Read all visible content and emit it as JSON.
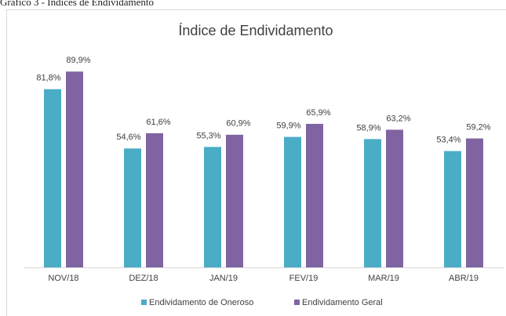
{
  "caption": "Gráfico 3 - Índices de Endividamento",
  "chart_data": {
    "type": "bar",
    "title": "Índice de Endividamento",
    "categories": [
      "NOV/18",
      "DEZ/18",
      "JAN/19",
      "FEV/19",
      "MAR/19",
      "ABR/19"
    ],
    "series": [
      {
        "name": "Endividamento de Oneroso",
        "color": "#4bacc6",
        "values": [
          81.8,
          54.6,
          55.3,
          59.9,
          58.9,
          53.4
        ],
        "value_labels": [
          "81,8%",
          "54,6%",
          "55,3%",
          "59,9%",
          "58,9%",
          "53,4%"
        ]
      },
      {
        "name": "Endividamento Geral",
        "color": "#8064a2",
        "values": [
          89.9,
          61.6,
          60.9,
          65.9,
          63.2,
          59.2
        ],
        "value_labels": [
          "89,9%",
          "61,6%",
          "60,9%",
          "65,9%",
          "63,2%",
          "59,2%"
        ]
      }
    ],
    "ylim": [
      0,
      90
    ]
  }
}
